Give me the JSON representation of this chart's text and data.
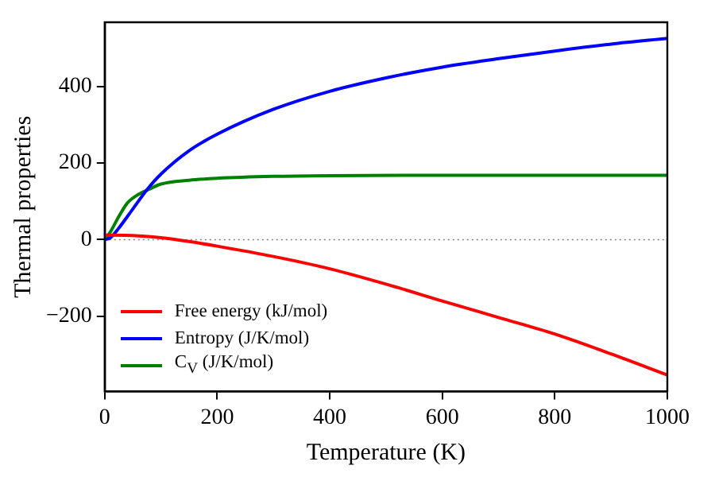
{
  "chart_data": {
    "type": "line",
    "xlabel": "Temperature (K)",
    "ylabel": "Thermal properties",
    "xlim": [
      0,
      1000
    ],
    "xticks": [
      0,
      200,
      400,
      600,
      800,
      1000
    ],
    "ylim": [
      -396,
      567
    ],
    "yticks": [
      -200,
      0,
      200,
      400
    ],
    "grid": false,
    "legend": "bottom left",
    "marker": "none",
    "line_style": "solid",
    "ref_lines": [
      {
        "axis": "y",
        "value": 0,
        "color": "#808080",
        "line_style": "dotted"
      }
    ],
    "series": [
      {
        "name": "Free energy (kJ/mol)",
        "color": "#ff0000",
        "x": [
          0,
          50,
          100,
          150,
          200,
          300,
          400,
          500,
          600,
          700,
          800,
          900,
          1000
        ],
        "values": [
          12,
          11,
          5,
          -5,
          -17,
          -44,
          -76,
          -116,
          -160,
          -203,
          -246,
          -298,
          -353
        ]
      },
      {
        "name": "Entropy (J/K/mol)",
        "color": "#0000ff",
        "x": [
          0,
          10,
          25,
          50,
          75,
          100,
          150,
          200,
          300,
          400,
          500,
          600,
          700,
          800,
          900,
          1000
        ],
        "values": [
          0,
          5,
          30,
          80,
          130,
          171,
          232,
          275,
          340,
          387,
          422,
          450,
          472,
          492,
          510,
          525
        ]
      },
      {
        "name": "C$_{V}$ (J/K/mol)",
        "color": "#008000",
        "x": [
          0,
          10,
          25,
          40,
          60,
          80,
          100,
          150,
          200,
          300,
          400,
          600,
          800,
          1000
        ],
        "values": [
          0,
          20,
          60,
          95,
          118,
          132,
          145,
          155,
          160,
          165,
          167,
          168,
          168,
          168
        ]
      }
    ]
  }
}
